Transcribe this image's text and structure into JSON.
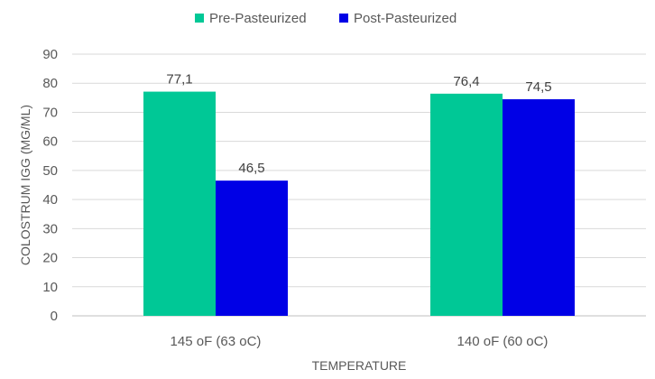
{
  "chart_data": {
    "type": "bar",
    "title": "",
    "xlabel": "TEMPERATURE",
    "ylabel": "COLOSTRUM IGG (MG/ML)",
    "categories": [
      "145 oF (63 oC)",
      "140 oF (60 oC)"
    ],
    "series": [
      {
        "name": "Pre-Pasteurized",
        "values": [
          77.1,
          76.4
        ],
        "labels": [
          "77,1",
          "76,4"
        ],
        "color": "#00C896"
      },
      {
        "name": "Post-Pasteurized",
        "values": [
          46.5,
          74.5
        ],
        "labels": [
          "46,5",
          "74,5"
        ],
        "color": "#0000E6"
      }
    ],
    "ylim": [
      0,
      90
    ],
    "yticks": [
      0,
      10,
      20,
      30,
      40,
      50,
      60,
      70,
      80,
      90
    ],
    "grid": true,
    "legend": "top-center"
  }
}
